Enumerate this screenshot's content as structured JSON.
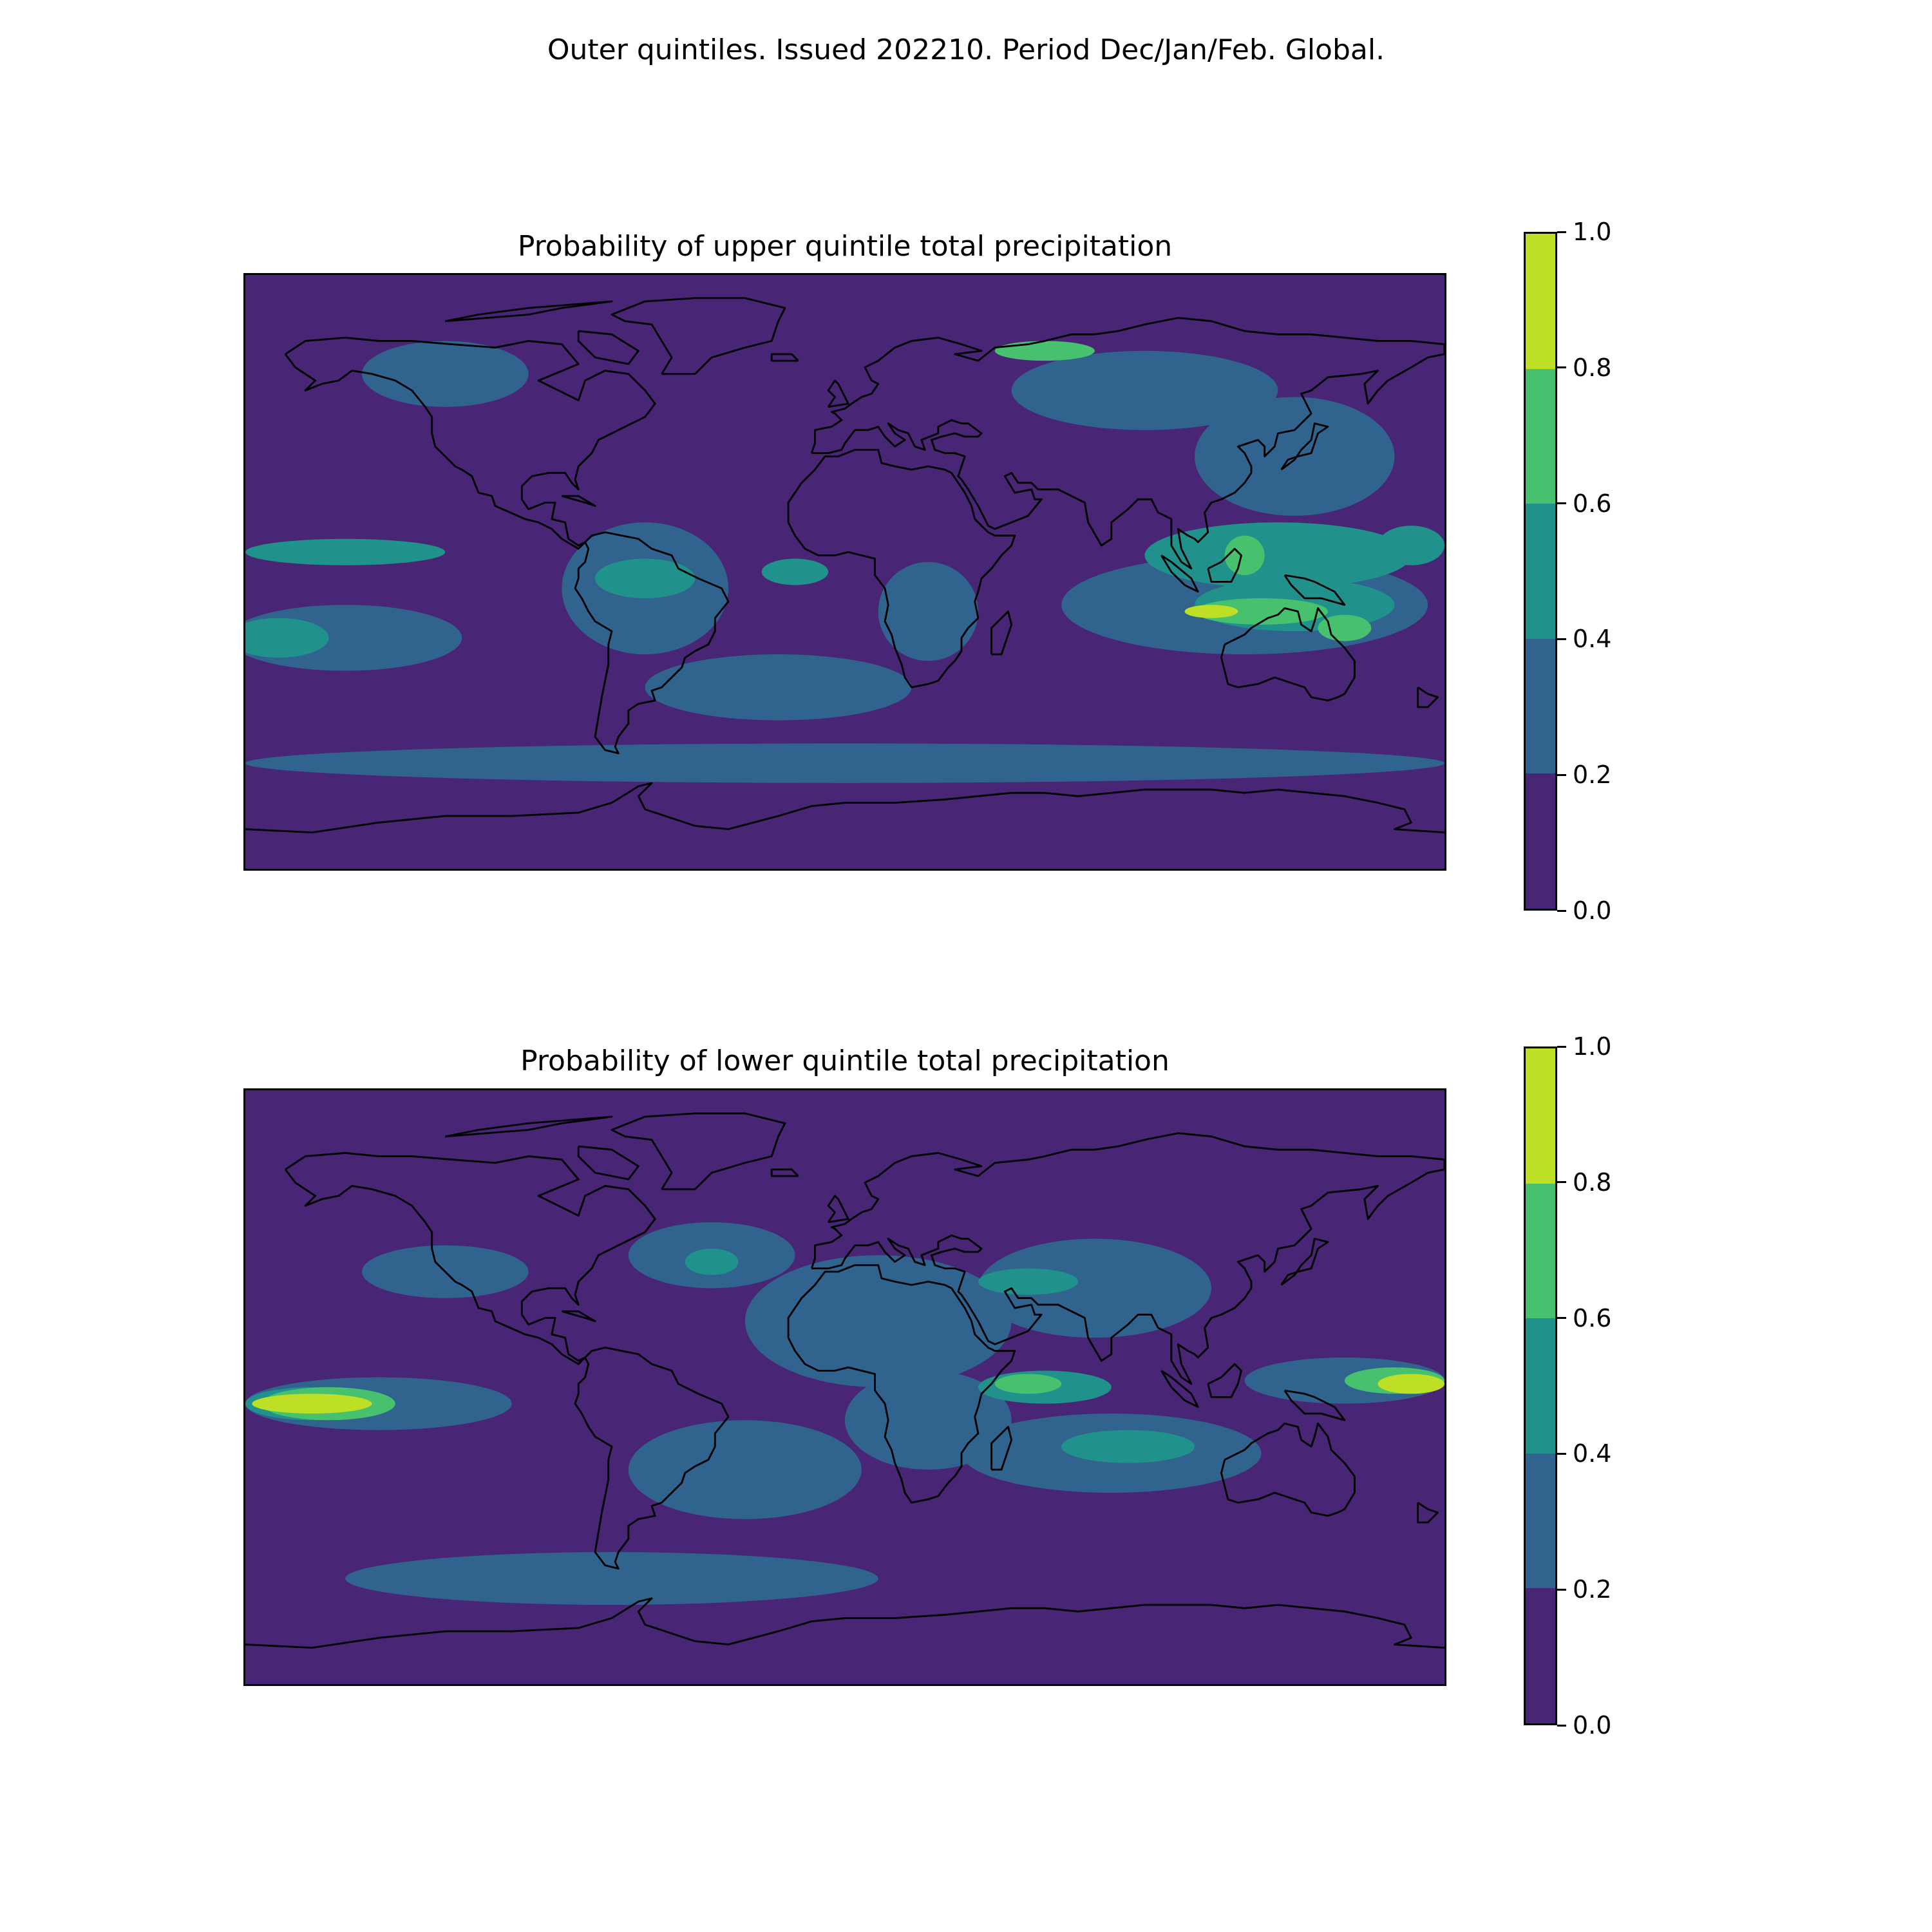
{
  "figure": {
    "suptitle": "Outer quintiles. Issued 202210. Period Dec/Jan/Feb. Global."
  },
  "colorbar": {
    "levels": [
      "0.0",
      "0.2",
      "0.4",
      "0.6",
      "0.8",
      "1.0"
    ],
    "colors": [
      "#482575",
      "#30648e",
      "#21918c",
      "#47c16e",
      "#bddf26"
    ]
  },
  "panels": [
    {
      "title": "Probability of upper quintile total precipitation",
      "blobs": [
        {
          "level": 1,
          "lon": -120,
          "lat": 60,
          "rx": 25,
          "ry": 10
        },
        {
          "level": 1,
          "lon": 90,
          "lat": 55,
          "rx": 40,
          "ry": 12
        },
        {
          "level": 1,
          "lon": 135,
          "lat": 35,
          "rx": 30,
          "ry": 18
        },
        {
          "level": 1,
          "lon": -60,
          "lat": -5,
          "rx": 25,
          "ry": 20
        },
        {
          "level": 1,
          "lon": 25,
          "lat": -12,
          "rx": 15,
          "ry": 15
        },
        {
          "level": 1,
          "lon": 120,
          "lat": -10,
          "rx": 55,
          "ry": 15
        },
        {
          "level": 1,
          "lon": -150,
          "lat": -20,
          "rx": 35,
          "ry": 10
        },
        {
          "level": 1,
          "lon": 0,
          "lat": -58,
          "rx": 180,
          "ry": 6
        },
        {
          "level": 1,
          "lon": -20,
          "lat": -35,
          "rx": 40,
          "ry": 10
        },
        {
          "level": 2,
          "lon": 130,
          "lat": 5,
          "rx": 40,
          "ry": 10
        },
        {
          "level": 2,
          "lon": 135,
          "lat": -10,
          "rx": 30,
          "ry": 8
        },
        {
          "level": 2,
          "lon": -150,
          "lat": 6,
          "rx": 30,
          "ry": 4
        },
        {
          "level": 2,
          "lon": -170,
          "lat": -20,
          "rx": 15,
          "ry": 6
        },
        {
          "level": 2,
          "lon": -60,
          "lat": -2,
          "rx": 15,
          "ry": 6
        },
        {
          "level": 2,
          "lon": -15,
          "lat": 0,
          "rx": 10,
          "ry": 4
        },
        {
          "level": 2,
          "lon": 170,
          "lat": 8,
          "rx": 10,
          "ry": 6
        },
        {
          "level": 3,
          "lon": 125,
          "lat": -12,
          "rx": 20,
          "ry": 4
        },
        {
          "level": 3,
          "lon": 150,
          "lat": -17,
          "rx": 8,
          "ry": 4
        },
        {
          "level": 3,
          "lon": 120,
          "lat": 5,
          "rx": 6,
          "ry": 6
        },
        {
          "level": 3,
          "lon": 60,
          "lat": 67,
          "rx": 15,
          "ry": 3
        },
        {
          "level": 4,
          "lon": 110,
          "lat": -12,
          "rx": 8,
          "ry": 2
        }
      ]
    },
    {
      "title": "Probability of lower quintile total precipitation",
      "blobs": [
        {
          "level": 1,
          "lon": 10,
          "lat": 20,
          "rx": 40,
          "ry": 20
        },
        {
          "level": 1,
          "lon": 75,
          "lat": 30,
          "rx": 35,
          "ry": 15
        },
        {
          "level": 1,
          "lon": -40,
          "lat": 40,
          "rx": 25,
          "ry": 10
        },
        {
          "level": 1,
          "lon": -120,
          "lat": 35,
          "rx": 25,
          "ry": 8
        },
        {
          "level": 1,
          "lon": -140,
          "lat": -5,
          "rx": 40,
          "ry": 8
        },
        {
          "level": 1,
          "lon": 80,
          "lat": -20,
          "rx": 45,
          "ry": 12
        },
        {
          "level": 1,
          "lon": 25,
          "lat": -10,
          "rx": 25,
          "ry": 15
        },
        {
          "level": 1,
          "lon": -30,
          "lat": -25,
          "rx": 35,
          "ry": 15
        },
        {
          "level": 1,
          "lon": 150,
          "lat": 2,
          "rx": 30,
          "ry": 7
        },
        {
          "level": 1,
          "lon": -70,
          "lat": -58,
          "rx": 80,
          "ry": 8
        },
        {
          "level": 2,
          "lon": -160,
          "lat": -5,
          "rx": 20,
          "ry": 5
        },
        {
          "level": 2,
          "lon": 60,
          "lat": 0,
          "rx": 20,
          "ry": 5
        },
        {
          "level": 2,
          "lon": 85,
          "lat": -18,
          "rx": 20,
          "ry": 5
        },
        {
          "level": 2,
          "lon": -40,
          "lat": 38,
          "rx": 8,
          "ry": 4
        },
        {
          "level": 2,
          "lon": 55,
          "lat": 32,
          "rx": 15,
          "ry": 4
        },
        {
          "level": 3,
          "lon": -155,
          "lat": -5,
          "rx": 20,
          "ry": 5
        },
        {
          "level": 3,
          "lon": 165,
          "lat": 2,
          "rx": 15,
          "ry": 4
        },
        {
          "level": 3,
          "lon": 55,
          "lat": 1,
          "rx": 10,
          "ry": 3
        },
        {
          "level": 4,
          "lon": -160,
          "lat": -5,
          "rx": 18,
          "ry": 3
        },
        {
          "level": 4,
          "lon": 170,
          "lat": 1,
          "rx": 10,
          "ry": 3
        }
      ]
    }
  ]
}
